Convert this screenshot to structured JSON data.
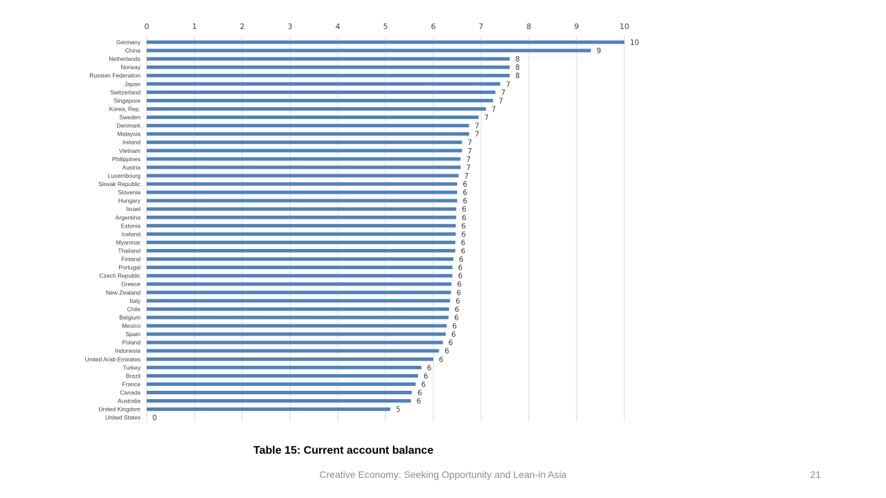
{
  "chart_data": {
    "type": "bar",
    "orientation": "horizontal",
    "title": "Table 15: Current account balance",
    "xlim": [
      0,
      10
    ],
    "xticks": [
      "0",
      "1",
      "2",
      "3",
      "4",
      "5",
      "6",
      "7",
      "8",
      "9",
      "10"
    ],
    "grid": true,
    "bar_color": "#4f81bd",
    "categories": [
      "Germany",
      "China",
      "Netherlands",
      "Norway",
      "Russian Federation",
      "Japan",
      "Switzerland",
      "Singapore",
      "Korea, Rep.",
      "Sweden",
      "Denmark",
      "Malaysia",
      "Ireland",
      "Vietnam",
      "Philippines",
      "Austria",
      "Luxembourg",
      "Slovak Republic",
      "Slovenia",
      "Hungary",
      "Israel",
      "Argentina",
      "Estonia",
      "Iceland",
      "Myanmar",
      "Thailand",
      "Finland",
      "Portugal",
      "Czech Republic",
      "Greece",
      "New Zealand",
      "Italy",
      "Chile",
      "Belgium",
      "Mexico",
      "Spain",
      "Poland",
      "Indonesia",
      "United Arab Emirates",
      "Turkey",
      "Brazil",
      "France",
      "Canada",
      "Australia",
      "United Kingdom",
      "United States"
    ],
    "values": [
      10,
      9.3,
      7.6,
      7.6,
      7.6,
      7.4,
      7.3,
      7.25,
      7.1,
      6.95,
      6.75,
      6.75,
      6.6,
      6.6,
      6.57,
      6.57,
      6.53,
      6.5,
      6.5,
      6.5,
      6.48,
      6.48,
      6.47,
      6.47,
      6.46,
      6.46,
      6.42,
      6.4,
      6.4,
      6.38,
      6.37,
      6.35,
      6.33,
      6.32,
      6.28,
      6.26,
      6.2,
      6.12,
      6.0,
      5.75,
      5.68,
      5.63,
      5.55,
      5.53,
      5.1,
      0
    ],
    "labels": [
      "10",
      "9",
      "8",
      "8",
      "8",
      "7",
      "7",
      "7",
      "7",
      "7",
      "7",
      "7",
      "7",
      "7",
      "7",
      "7",
      "7",
      "6",
      "6",
      "6",
      "6",
      "6",
      "6",
      "6",
      "6",
      "6",
      "6",
      "6",
      "6",
      "6",
      "6",
      "6",
      "6",
      "6",
      "6",
      "6",
      "6",
      "6",
      "6",
      "6",
      "6",
      "6",
      "6",
      "6",
      "5",
      "0"
    ]
  },
  "caption": "Table 15: Current account balance",
  "footer": {
    "text": "Creative Economy: Seeking Opportunity and Lean-in Asia",
    "page_number": "21"
  }
}
